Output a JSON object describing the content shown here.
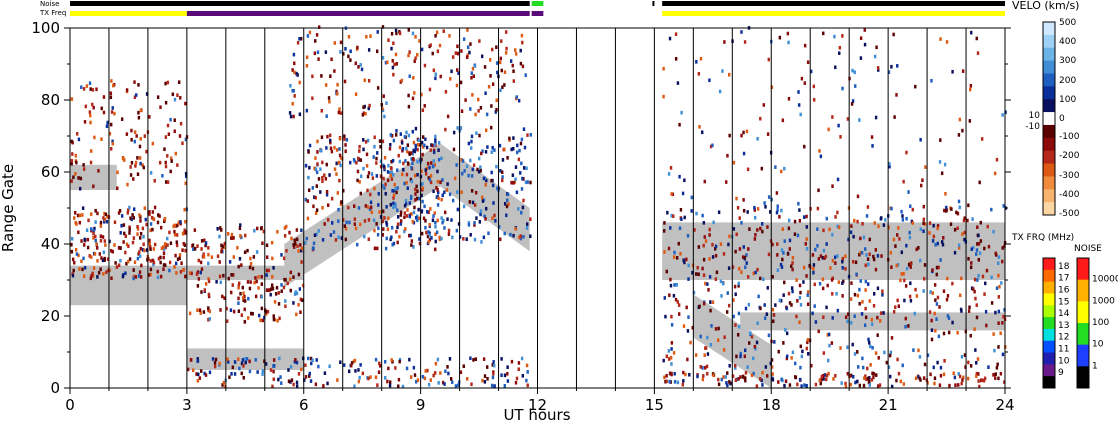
{
  "chart_data": {
    "type": "heatmap",
    "xlabel": "UT hours",
    "ylabel": "Range Gate",
    "xlim": [
      0,
      24
    ],
    "ylim": [
      0,
      100
    ],
    "x_ticks": [
      0,
      3,
      6,
      9,
      12,
      15,
      18,
      21,
      24
    ],
    "y_ticks": [
      0,
      20,
      40,
      60,
      80,
      100
    ],
    "status_rows": {
      "noise_label": "Noise",
      "txfreq_label": "TX Freq",
      "noise_segments": [
        {
          "start": 0.0,
          "end": 11.8,
          "color": "#000000"
        },
        {
          "start": 11.85,
          "end": 12.15,
          "color": "#22dd22"
        },
        {
          "start": 14.95,
          "end": 15.0,
          "color": "#000000"
        },
        {
          "start": 15.2,
          "end": 24.0,
          "color": "#000000"
        }
      ],
      "txfreq_segments": [
        {
          "start": 0.0,
          "end": 3.0,
          "color": "#ffff00"
        },
        {
          "start": 3.0,
          "end": 11.8,
          "color": "#5a0a78"
        },
        {
          "start": 11.85,
          "end": 12.15,
          "color": "#5a0a78"
        },
        {
          "start": 15.2,
          "end": 24.0,
          "color": "#ffff00"
        }
      ]
    },
    "bands": [
      {
        "name": "grey-low-1",
        "color": "#c0c0c0",
        "x": [
          0,
          3
        ],
        "y": [
          23,
          34
        ]
      },
      {
        "name": "grey-low-2",
        "color": "#c0c0c0",
        "x": [
          3,
          6
        ],
        "y": [
          30,
          34
        ]
      },
      {
        "name": "grey-rising",
        "color": "#c0c0c0",
        "x": [
          5.5,
          9.5
        ],
        "y": [
          34,
          62
        ]
      },
      {
        "name": "grey-descending",
        "color": "#c0c0c0",
        "x": [
          9.5,
          11.8
        ],
        "y": [
          62,
          44
        ]
      },
      {
        "name": "grey-bottom-block",
        "color": "#c0c0c0",
        "x": [
          3,
          6
        ],
        "y": [
          5,
          11
        ]
      },
      {
        "name": "grey-right-main",
        "color": "#c0c0c0",
        "x": [
          15.2,
          24
        ],
        "y": [
          30,
          46
        ]
      },
      {
        "name": "grey-right-mid",
        "color": "#c0c0c0",
        "x": [
          17.2,
          24
        ],
        "y": [
          16,
          21
        ]
      },
      {
        "name": "grey-right-diag",
        "color": "#c0c0c0",
        "x": [
          16,
          18
        ],
        "y": [
          20,
          6
        ]
      },
      {
        "name": "grey-top-left",
        "color": "#c0c0c0",
        "x": [
          0,
          1.2
        ],
        "y": [
          55,
          62
        ]
      }
    ],
    "velo_colorbar": {
      "title": "VELO (km/s)",
      "labels": [
        "500",
        "400",
        "300",
        "200",
        "100",
        "0",
        "10",
        "-10",
        "-100",
        "-200",
        "-300",
        "-400",
        "-500"
      ],
      "colors": [
        "#cfe8ff",
        "#9fd0f5",
        "#6cb3e8",
        "#3f8ed6",
        "#1f5fbf",
        "#0a2f9a",
        "#0a1060",
        "#ffffff",
        "#5a0000",
        "#8c0a0a",
        "#b4281a",
        "#dc5a14",
        "#f08c3c",
        "#f7b46e",
        "#fbd6a4"
      ]
    },
    "txfrq_colorbar": {
      "title": "TX FRQ (MHz)",
      "labels": [
        "18",
        "17",
        "16",
        "15",
        "14",
        "13",
        "12",
        "11",
        "10",
        "9"
      ],
      "colors": [
        "#ff1a1a",
        "#ff6a00",
        "#ffb000",
        "#ffff00",
        "#aaff00",
        "#22dd22",
        "#00e0e0",
        "#0050ff",
        "#2020b0",
        "#6a1a8a",
        "#000000"
      ]
    },
    "noise_colorbar": {
      "title": "NOISE",
      "labels": [
        "10000",
        "1000",
        "100",
        "10",
        "1"
      ],
      "colors": [
        "#ff1a1a",
        "#ffb000",
        "#ffff00",
        "#22dd22",
        "#1f3fff",
        "#000000"
      ]
    }
  }
}
